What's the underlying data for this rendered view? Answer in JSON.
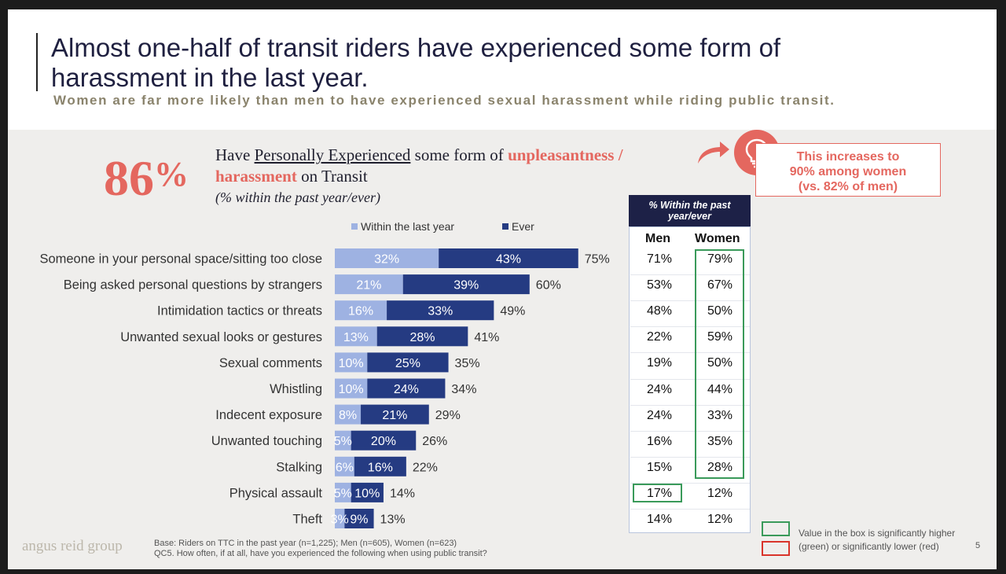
{
  "slide": {
    "title": "Almost one-half of transit riders have experienced some form of harassment in the last year.",
    "subtitle": "Women are far more likely than men to have experienced sexual harassment while riding public transit."
  },
  "stat": {
    "value": "86",
    "pct_sign": "%",
    "desc_1": "Have ",
    "desc_underline": "Personally Experienced",
    "desc_2": " some form of ",
    "desc_highlight_1": "unpleasantness /",
    "desc_highlight_2": "harassment",
    "desc_3": " on Transit",
    "note": "(% within the past year/ever)"
  },
  "callout": {
    "line1": "This increases to",
    "line2": "90% among women",
    "line3": "(vs. 82% of men)"
  },
  "colors": {
    "within_year": "#9eb2e2",
    "ever": "#253b82",
    "accent": "#e4675f",
    "green": "#3a9a5a",
    "red": "#d9342b",
    "table_header": "#1d2147"
  },
  "chart_data": {
    "type": "bar",
    "orientation": "horizontal",
    "stacked": true,
    "legend": [
      "Within the last year",
      "Ever"
    ],
    "categories": [
      "Someone in your personal space/sitting too close",
      "Being asked personal questions by strangers",
      "Intimidation tactics or threats",
      "Unwanted sexual looks or gestures",
      "Sexual comments",
      "Whistling",
      "Indecent exposure",
      "Unwanted touching",
      "Stalking",
      "Physical assault",
      "Theft"
    ],
    "series": [
      {
        "name": "Within the last year",
        "values": [
          32,
          21,
          16,
          13,
          10,
          10,
          8,
          5,
          6,
          5,
          3
        ],
        "labels": [
          "32%",
          "21%",
          "16%",
          "13%",
          "10%",
          "10%",
          "8%",
          "5%",
          "6%",
          "5%",
          "3%"
        ]
      },
      {
        "name": "Ever",
        "values": [
          43,
          39,
          33,
          28,
          25,
          24,
          21,
          20,
          16,
          10,
          9
        ],
        "labels": [
          "43%",
          "39%",
          "33%",
          "28%",
          "25%",
          "24%",
          "21%",
          "20%",
          "16%",
          "10%",
          "9%"
        ]
      }
    ],
    "totals": [
      "75%",
      "60%",
      "49%",
      "41%",
      "35%",
      "34%",
      "29%",
      "26%",
      "22%",
      "14%",
      "13%"
    ]
  },
  "table": {
    "header": "% Within the past year/ever",
    "col_men": "Men",
    "col_women": "Women",
    "rows": [
      {
        "men": "71%",
        "women": "79%"
      },
      {
        "men": "53%",
        "women": "67%"
      },
      {
        "men": "48%",
        "women": "50%"
      },
      {
        "men": "22%",
        "women": "59%"
      },
      {
        "men": "19%",
        "women": "50%"
      },
      {
        "men": "24%",
        "women": "44%"
      },
      {
        "men": "24%",
        "women": "33%"
      },
      {
        "men": "16%",
        "women": "35%"
      },
      {
        "men": "15%",
        "women": "28%"
      },
      {
        "men": "17%",
        "women": "12%"
      },
      {
        "men": "14%",
        "women": "12%"
      }
    ]
  },
  "sig_legend": {
    "line1": "Value in the box is significantly higher",
    "line2": "(green) or significantly lower (red)"
  },
  "footer": {
    "logo": "angus reid group",
    "base": "Base: Riders on TTC in the past year (n=1,225); Men (n=605), Women (n=623)",
    "question": "QC5. How often, if at all, have you experienced the following when using public transit?",
    "page": "5"
  }
}
